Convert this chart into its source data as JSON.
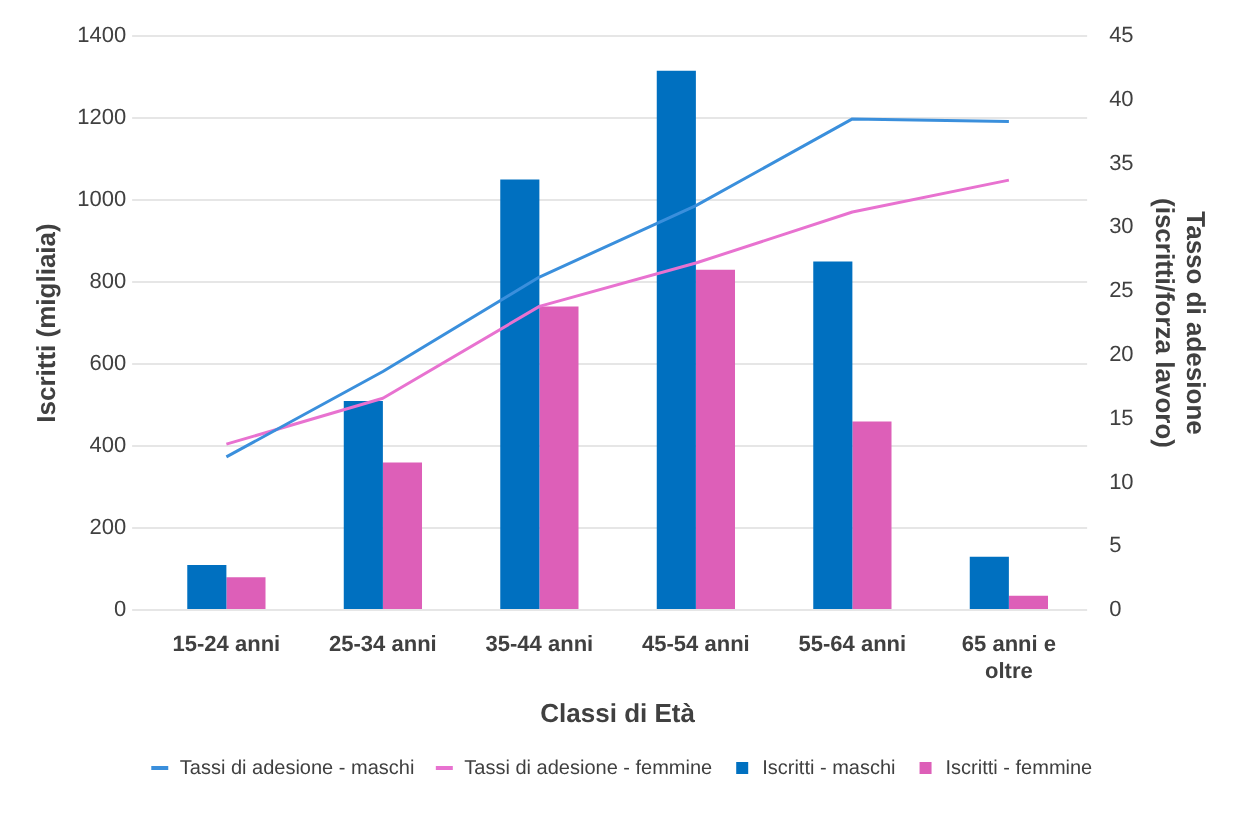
{
  "chart_data": {
    "type": "bar",
    "xlabel": "Classi di Età",
    "ylabel": "Iscritti (migliaia)",
    "y2label": "Tasso di adesione (iscritti/forza lavoro)",
    "categories": [
      "15-24 anni",
      "25-34 anni",
      "35-44 anni",
      "45-54 anni",
      "55-64 anni",
      "65 anni e oltre"
    ],
    "series": [
      {
        "name": "Iscritti - maschi",
        "color": "#0070c0",
        "values": [
          110,
          510,
          1050,
          1315,
          850,
          130
        ]
      },
      {
        "name": "Iscritti - femmine",
        "color": "#dd5fb8",
        "values": [
          80,
          360,
          740,
          830,
          460,
          35
        ]
      },
      {
        "name": "Tassi di adesione - maschi",
        "type": "line",
        "axis": "y2",
        "color": "#3a8fdc",
        "values": [
          12,
          18.7,
          26.1,
          31.7,
          38.5,
          38.3
        ]
      },
      {
        "name": "Tassi di adesione - femmine",
        "type": "line",
        "axis": "y2",
        "color": "#e872d0",
        "values": [
          13,
          16.6,
          23.8,
          27.2,
          31.2,
          33.7
        ]
      }
    ],
    "ylim": [
      0,
      1400
    ],
    "yticks": [
      0,
      200,
      400,
      600,
      800,
      1000,
      1200,
      1400
    ],
    "y2lim": [
      0,
      45
    ],
    "y2ticks": [
      0,
      5,
      10,
      15,
      20,
      25,
      30,
      35,
      40,
      45
    ],
    "grid": "y",
    "legend": "bottom",
    "marker": "none"
  }
}
